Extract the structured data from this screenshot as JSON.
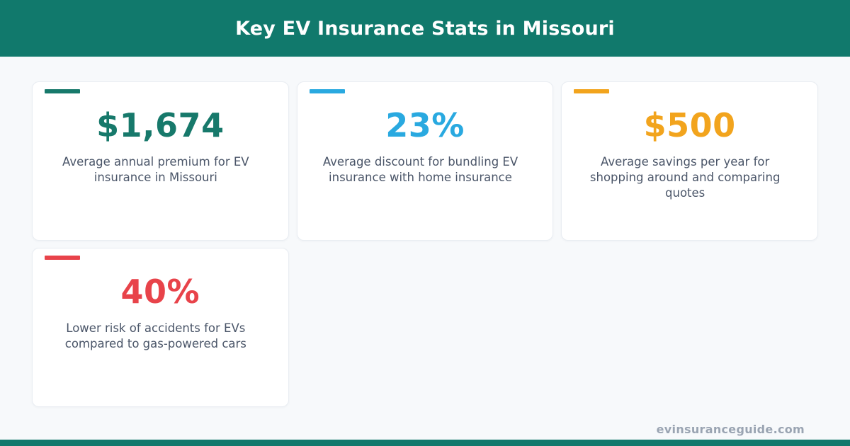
{
  "header": {
    "title": "Key EV Insurance Stats in Missouri"
  },
  "chart_data": {
    "type": "table",
    "title": "Key EV Insurance Stats in Missouri",
    "categories": [
      "Average annual premium for EV insurance in Missouri",
      "Average discount for bundling EV insurance with home insurance",
      "Average savings per year for shopping around and comparing quotes",
      "Lower risk of accidents for EVs compared to gas-powered cars"
    ],
    "values": [
      1674,
      23,
      500,
      40
    ],
    "value_labels": [
      "$1,674",
      "23%",
      "$500",
      "40%"
    ],
    "legend_position": "none",
    "grid": false
  },
  "cards": [
    {
      "value": "$1,674",
      "description": "Average annual premium for EV insurance in Missouri",
      "accent": "#17796b"
    },
    {
      "value": "23%",
      "description": "Average discount for bundling EV insurance with home insurance",
      "accent": "#29a9e0"
    },
    {
      "value": "$500",
      "description": "Average savings per year for shopping around and comparing quotes",
      "accent": "#f2a41d"
    },
    {
      "value": "40%",
      "description": "Lower risk of accidents for EVs compared to gas-powered cars",
      "accent": "#e8434a"
    }
  ],
  "footer": {
    "website": "evinsuranceguide.com"
  },
  "colors": {
    "header_bg": "#11796c",
    "page_bg": "#f7f9fb",
    "card_bg": "#ffffff",
    "desc_text": "#4a5568",
    "footer_text": "#9aa4b2"
  }
}
